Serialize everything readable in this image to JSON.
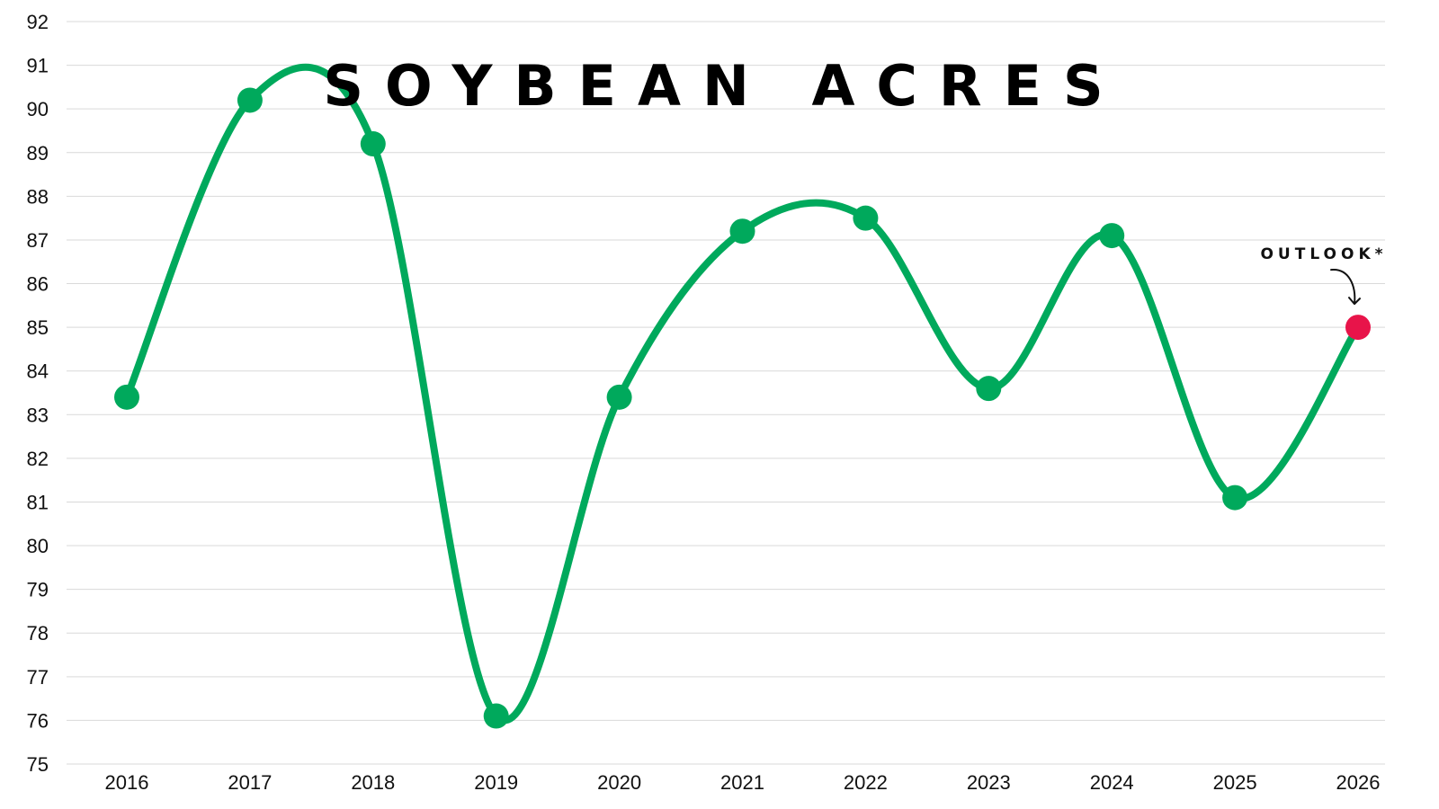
{
  "chart_data": {
    "type": "line",
    "title": "SOYBEAN ACRES",
    "xlabel": "",
    "ylabel": "",
    "categories": [
      "2016",
      "2017",
      "2018",
      "2019",
      "2020",
      "2021",
      "2022",
      "2023",
      "2024",
      "2025",
      "2026"
    ],
    "series": [
      {
        "values": [
          83.4,
          90.2,
          89.2,
          76.1,
          83.4,
          87.2,
          87.5,
          83.6,
          87.1,
          81.1,
          85.0
        ]
      }
    ],
    "ylim": [
      75,
      92
    ],
    "yticks": [
      "75",
      "76",
      "77",
      "78",
      "79",
      "80",
      "81",
      "82",
      "83",
      "84",
      "85",
      "86",
      "87",
      "88",
      "89",
      "90",
      "91",
      "92"
    ],
    "grid": true,
    "smooth": true,
    "annotation": {
      "text": "OUTLOOK*",
      "category": "2026"
    },
    "colors": {
      "line": "#00a95c",
      "highlight": "#e8144a",
      "grid": "#d9d9d9"
    }
  }
}
